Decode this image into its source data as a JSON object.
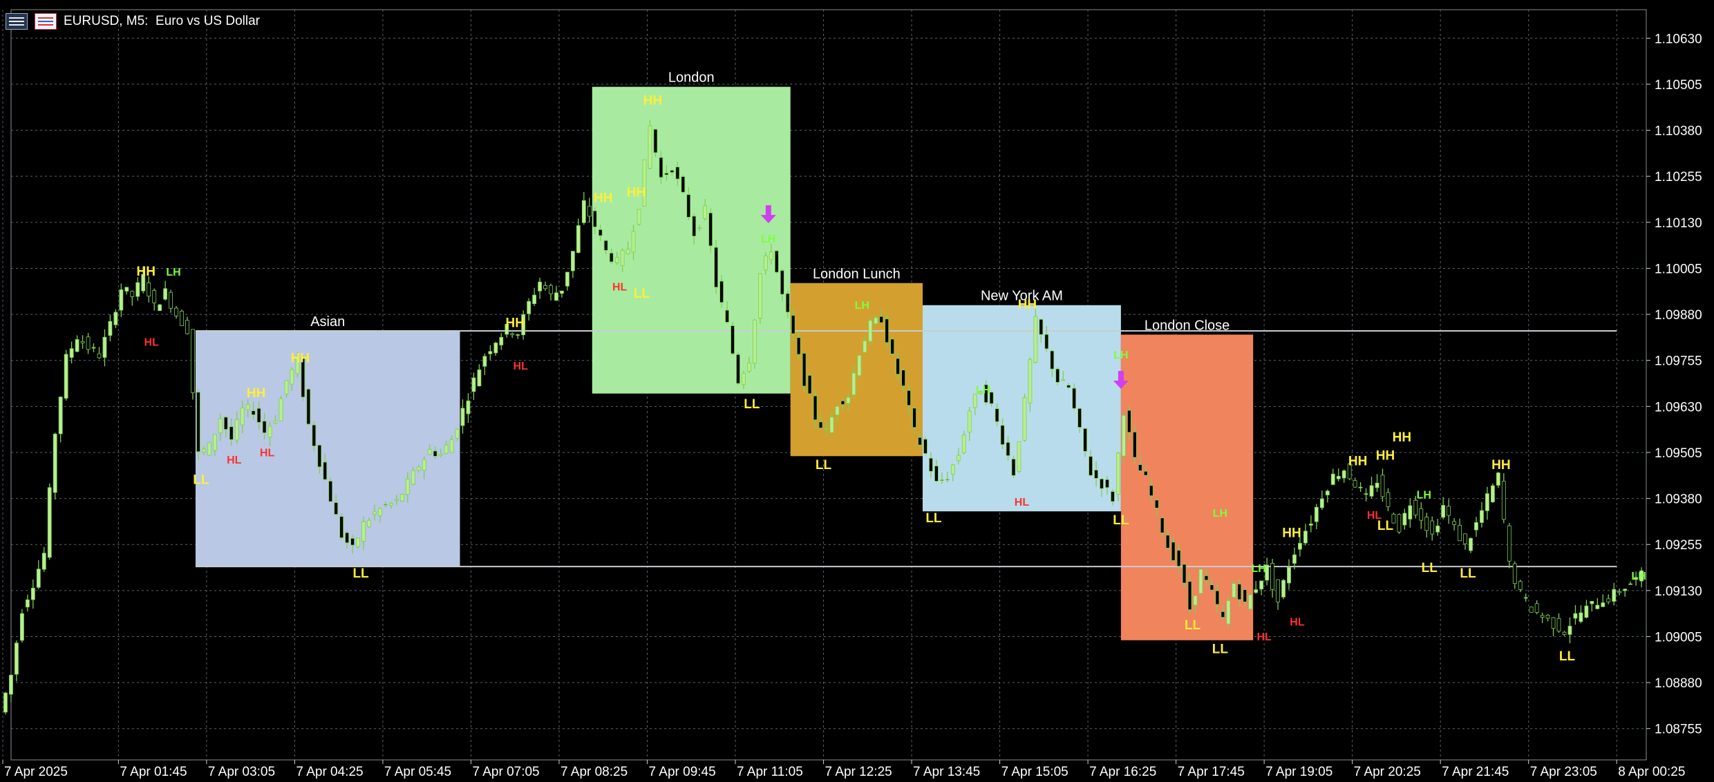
{
  "window": {
    "title": "EURUSD, M5:  Euro vs US Dollar",
    "icons": [
      "chart-list-icon",
      "trading-icon"
    ]
  },
  "chart_data": {
    "type": "candlestick",
    "symbol": "EURUSD",
    "timeframe": "M5",
    "ylim": [
      1.0867,
      1.107
    ],
    "y_ticks": [
      "1.10630",
      "1.10505",
      "1.10380",
      "1.10255",
      "1.10130",
      "1.10005",
      "1.09880",
      "1.09755",
      "1.09630",
      "1.09505",
      "1.09380",
      "1.09255",
      "1.09130",
      "1.09005",
      "1.08880",
      "1.08755"
    ],
    "x_start": "7 Apr 2025 00:00",
    "x_tick_labels": [
      "7 Apr 2025",
      "7 Apr 01:45",
      "7 Apr 03:05",
      "7 Apr 04:25",
      "7 Apr 05:45",
      "7 Apr 07:05",
      "7 Apr 08:25",
      "7 Apr 09:45",
      "7 Apr 11:05",
      "7 Apr 12:25",
      "7 Apr 13:45",
      "7 Apr 15:05",
      "7 Apr 16:25",
      "7 Apr 17:45",
      "7 Apr 19:05",
      "7 Apr 20:25",
      "7 Apr 21:45",
      "7 Apr 23:05",
      "8 Apr 00:25"
    ],
    "grid": true,
    "colors": {
      "background": "#000000",
      "grid": "#5a6470",
      "text": "#ffffff",
      "bull_candle": "#b7ef8f",
      "bear_candle": "#000000",
      "wick": "#7fcf52",
      "label_HH": "#ffef3a",
      "label_LL": "#ffef3a",
      "label_HL": "#ff3030",
      "label_LH": "#7dff3a",
      "arrow": "#d040f0"
    },
    "sessions": [
      {
        "name": "Asian",
        "start": "7 Apr 02:55",
        "end": "7 Apr 06:55",
        "high": 1.09835,
        "low": 1.09195,
        "color": "#b9c8e4"
      },
      {
        "name": "London",
        "start": "7 Apr 08:55",
        "end": "7 Apr 11:55",
        "high": 1.10498,
        "low": 1.09665,
        "color": "#a8eba0"
      },
      {
        "name": "London Lunch",
        "start": "7 Apr 11:55",
        "end": "7 Apr 13:55",
        "high": 1.09965,
        "low": 1.09495,
        "color": "#d3a030"
      },
      {
        "name": "New York AM",
        "start": "7 Apr 13:55",
        "end": "7 Apr 16:55",
        "high": 1.09905,
        "low": 1.09345,
        "color": "#b9dcec"
      },
      {
        "name": "London Close",
        "start": "7 Apr 16:55",
        "end": "7 Apr 18:55",
        "high": 1.09825,
        "low": 1.08995,
        "color": "#f0845c"
      }
    ],
    "horizontal_lines": [
      {
        "price": 1.09835,
        "from": "7 Apr 02:55",
        "to": "8 Apr 00:25"
      },
      {
        "price": 1.09195,
        "from": "7 Apr 02:55",
        "to": "8 Apr 00:25"
      }
    ],
    "arrows": [
      {
        "time": "7 Apr 11:35",
        "price": 1.1015,
        "direction": "down"
      },
      {
        "time": "7 Apr 16:55",
        "price": 1.097,
        "direction": "down"
      }
    ],
    "swing_labels": [
      {
        "text": "HH",
        "time": "7 Apr 02:10",
        "price": 1.1
      },
      {
        "text": "LH",
        "time": "7 Apr 02:35",
        "price": 1.1
      },
      {
        "text": "HL",
        "time": "7 Apr 02:15",
        "price": 1.0981
      },
      {
        "text": "HH",
        "time": "7 Apr 04:30",
        "price": 1.09765
      },
      {
        "text": "HH",
        "time": "7 Apr 03:50",
        "price": 1.0967
      },
      {
        "text": "HL",
        "time": "7 Apr 03:30",
        "price": 1.0949
      },
      {
        "text": "HL",
        "time": "7 Apr 04:00",
        "price": 1.0951
      },
      {
        "text": "LL",
        "time": "7 Apr 03:00",
        "price": 1.09435
      },
      {
        "text": "LL",
        "time": "7 Apr 05:25",
        "price": 1.0918
      },
      {
        "text": "HH",
        "time": "7 Apr 07:45",
        "price": 1.0986
      },
      {
        "text": "HL",
        "time": "7 Apr 07:50",
        "price": 1.09745
      },
      {
        "text": "HH",
        "time": "7 Apr 09:05",
        "price": 1.102
      },
      {
        "text": "HH",
        "time": "7 Apr 09:50",
        "price": 1.10465
      },
      {
        "text": "HH",
        "time": "7 Apr 09:35",
        "price": 1.10215
      },
      {
        "text": "HL",
        "time": "7 Apr 09:20",
        "price": 1.0996
      },
      {
        "text": "LL",
        "time": "7 Apr 09:40",
        "price": 1.0994
      },
      {
        "text": "LH",
        "time": "7 Apr 11:35",
        "price": 1.1009
      },
      {
        "text": "LL",
        "time": "7 Apr 11:20",
        "price": 1.0964
      },
      {
        "text": "LH",
        "time": "7 Apr 13:00",
        "price": 1.0991
      },
      {
        "text": "LL",
        "time": "7 Apr 12:25",
        "price": 1.09475
      },
      {
        "text": "LH",
        "time": "7 Apr 14:50",
        "price": 1.0968
      },
      {
        "text": "HH",
        "time": "7 Apr 15:30",
        "price": 1.0991
      },
      {
        "text": "LL",
        "time": "7 Apr 14:05",
        "price": 1.0933
      },
      {
        "text": "HL",
        "time": "7 Apr 15:25",
        "price": 1.09375
      },
      {
        "text": "LH",
        "time": "7 Apr 16:55",
        "price": 1.09775
      },
      {
        "text": "LL",
        "time": "7 Apr 16:55",
        "price": 1.09325
      },
      {
        "text": "LH",
        "time": "7 Apr 18:25",
        "price": 1.09345
      },
      {
        "text": "LH",
        "time": "7 Apr 19:00",
        "price": 1.09195
      },
      {
        "text": "LL",
        "time": "7 Apr 18:00",
        "price": 1.0904
      },
      {
        "text": "LL",
        "time": "7 Apr 18:25",
        "price": 1.08975
      },
      {
        "text": "HL",
        "time": "7 Apr 19:05",
        "price": 1.0901
      },
      {
        "text": "HH",
        "time": "7 Apr 19:30",
        "price": 1.0929
      },
      {
        "text": "HL",
        "time": "7 Apr 19:35",
        "price": 1.0905
      },
      {
        "text": "HH",
        "time": "7 Apr 20:30",
        "price": 1.09485
      },
      {
        "text": "HH",
        "time": "7 Apr 20:55",
        "price": 1.095
      },
      {
        "text": "HH",
        "time": "7 Apr 21:10",
        "price": 1.0955
      },
      {
        "text": "HL",
        "time": "7 Apr 20:45",
        "price": 1.0934
      },
      {
        "text": "LL",
        "time": "7 Apr 20:55",
        "price": 1.0931
      },
      {
        "text": "LH",
        "time": "7 Apr 21:30",
        "price": 1.09395
      },
      {
        "text": "LL",
        "time": "7 Apr 21:35",
        "price": 1.09195
      },
      {
        "text": "LL",
        "time": "7 Apr 22:10",
        "price": 1.0918
      },
      {
        "text": "HH",
        "time": "7 Apr 22:40",
        "price": 1.09475
      },
      {
        "text": "LL",
        "time": "7 Apr 23:40",
        "price": 1.08955
      },
      {
        "text": "LH",
        "time": "8 Apr 00:45",
        "price": 1.09175
      }
    ],
    "price_path": [
      [
        "7 Apr 00:00",
        1.088
      ],
      [
        "7 Apr 00:10",
        1.089
      ],
      [
        "7 Apr 00:20",
        1.0908
      ],
      [
        "7 Apr 00:30",
        1.0915
      ],
      [
        "7 Apr 00:40",
        1.0923
      ],
      [
        "7 Apr 00:50",
        1.0956
      ],
      [
        "7 Apr 01:00",
        1.0976
      ],
      [
        "7 Apr 01:10",
        1.0982
      ],
      [
        "7 Apr 01:20",
        1.0979
      ],
      [
        "7 Apr 01:30",
        1.0977
      ],
      [
        "7 Apr 01:40",
        1.0985
      ],
      [
        "7 Apr 01:50",
        1.0995
      ],
      [
        "7 Apr 02:00",
        1.0993
      ],
      [
        "7 Apr 02:10",
        1.0998
      ],
      [
        "7 Apr 02:20",
        1.099
      ],
      [
        "7 Apr 02:30",
        1.0994
      ],
      [
        "7 Apr 02:40",
        1.0988
      ],
      [
        "7 Apr 02:50",
        1.0984
      ],
      [
        "7 Apr 03:00",
        1.095
      ],
      [
        "7 Apr 03:10",
        1.0952
      ],
      [
        "7 Apr 03:20",
        1.096
      ],
      [
        "7 Apr 03:30",
        1.0954
      ],
      [
        "7 Apr 03:40",
        1.0962
      ],
      [
        "7 Apr 03:50",
        1.0962
      ],
      [
        "7 Apr 04:00",
        1.0956
      ],
      [
        "7 Apr 04:10",
        1.096
      ],
      [
        "7 Apr 04:20",
        1.097
      ],
      [
        "7 Apr 04:30",
        1.0975
      ],
      [
        "7 Apr 04:40",
        1.0958
      ],
      [
        "7 Apr 04:50",
        1.0948
      ],
      [
        "7 Apr 05:00",
        1.0938
      ],
      [
        "7 Apr 05:10",
        1.0928
      ],
      [
        "7 Apr 05:20",
        1.0924
      ],
      [
        "7 Apr 05:30",
        1.0931
      ],
      [
        "7 Apr 05:40",
        1.0934
      ],
      [
        "7 Apr 05:50",
        1.0936
      ],
      [
        "7 Apr 06:00",
        1.0937
      ],
      [
        "7 Apr 06:10",
        1.0942
      ],
      [
        "7 Apr 06:20",
        1.0947
      ],
      [
        "7 Apr 06:30",
        1.0951
      ],
      [
        "7 Apr 06:40",
        1.095
      ],
      [
        "7 Apr 06:50",
        1.0954
      ],
      [
        "7 Apr 07:00",
        1.0962
      ],
      [
        "7 Apr 07:10",
        1.097
      ],
      [
        "7 Apr 07:20",
        1.0977
      ],
      [
        "7 Apr 07:30",
        1.0981
      ],
      [
        "7 Apr 07:40",
        1.0984
      ],
      [
        "7 Apr 07:50",
        1.0983
      ],
      [
        "7 Apr 08:00",
        1.0991
      ],
      [
        "7 Apr 08:10",
        1.0997
      ],
      [
        "7 Apr 08:20",
        1.0993
      ],
      [
        "7 Apr 08:30",
        1.0995
      ],
      [
        "7 Apr 08:40",
        1.1005
      ],
      [
        "7 Apr 08:50",
        1.1018
      ],
      [
        "7 Apr 09:00",
        1.1012
      ],
      [
        "7 Apr 09:10",
        1.1005
      ],
      [
        "7 Apr 09:20",
        1.1002
      ],
      [
        "7 Apr 09:30",
        1.1006
      ],
      [
        "7 Apr 09:40",
        1.1018
      ],
      [
        "7 Apr 09:50",
        1.1039
      ],
      [
        "7 Apr 10:00",
        1.1025
      ],
      [
        "7 Apr 10:10",
        1.1028
      ],
      [
        "7 Apr 10:20",
        1.102
      ],
      [
        "7 Apr 10:30",
        1.101
      ],
      [
        "7 Apr 10:40",
        1.1016
      ],
      [
        "7 Apr 10:50",
        1.0996
      ],
      [
        "7 Apr 11:00",
        1.0985
      ],
      [
        "7 Apr 11:10",
        1.097
      ],
      [
        "7 Apr 11:20",
        1.0976
      ],
      [
        "7 Apr 11:30",
        1.0999
      ],
      [
        "7 Apr 11:40",
        1.1006
      ],
      [
        "7 Apr 11:50",
        1.0993
      ],
      [
        "7 Apr 12:00",
        1.0982
      ],
      [
        "7 Apr 12:10",
        1.097
      ],
      [
        "7 Apr 12:20",
        1.096
      ],
      [
        "7 Apr 12:30",
        1.0956
      ],
      [
        "7 Apr 12:40",
        1.0964
      ],
      [
        "7 Apr 12:50",
        1.0966
      ],
      [
        "7 Apr 13:00",
        1.0978
      ],
      [
        "7 Apr 13:10",
        1.0985
      ],
      [
        "7 Apr 13:20",
        1.0987
      ],
      [
        "7 Apr 13:30",
        1.0976
      ],
      [
        "7 Apr 13:40",
        1.0968
      ],
      [
        "7 Apr 13:50",
        1.0956
      ],
      [
        "7 Apr 14:00",
        1.095
      ],
      [
        "7 Apr 14:10",
        1.0942
      ],
      [
        "7 Apr 14:20",
        1.0944
      ],
      [
        "7 Apr 14:30",
        1.095
      ],
      [
        "7 Apr 14:40",
        1.0962
      ],
      [
        "7 Apr 14:50",
        1.0968
      ],
      [
        "7 Apr 15:00",
        1.0963
      ],
      [
        "7 Apr 15:10",
        1.0954
      ],
      [
        "7 Apr 15:20",
        1.0945
      ],
      [
        "7 Apr 15:30",
        1.0964
      ],
      [
        "7 Apr 15:40",
        1.0986
      ],
      [
        "7 Apr 15:50",
        1.0978
      ],
      [
        "7 Apr 16:00",
        1.097
      ],
      [
        "7 Apr 16:10",
        1.0968
      ],
      [
        "7 Apr 16:20",
        1.0956
      ],
      [
        "7 Apr 16:30",
        1.0945
      ],
      [
        "7 Apr 16:40",
        1.0942
      ],
      [
        "7 Apr 16:50",
        1.0938
      ],
      [
        "7 Apr 17:00",
        1.0962
      ],
      [
        "7 Apr 17:10",
        1.0948
      ],
      [
        "7 Apr 17:20",
        1.0943
      ],
      [
        "7 Apr 17:30",
        1.0934
      ],
      [
        "7 Apr 17:40",
        1.0925
      ],
      [
        "7 Apr 17:50",
        1.092
      ],
      [
        "7 Apr 18:00",
        1.0908
      ],
      [
        "7 Apr 18:10",
        1.0918
      ],
      [
        "7 Apr 18:20",
        1.0912
      ],
      [
        "7 Apr 18:30",
        1.0905
      ],
      [
        "7 Apr 18:40",
        1.0915
      ],
      [
        "7 Apr 18:50",
        1.0909
      ],
      [
        "7 Apr 19:00",
        1.0914
      ],
      [
        "7 Apr 19:10",
        1.0919
      ],
      [
        "7 Apr 19:20",
        1.091
      ],
      [
        "7 Apr 19:30",
        1.092
      ],
      [
        "7 Apr 19:40",
        1.0927
      ],
      [
        "7 Apr 19:50",
        1.0932
      ],
      [
        "7 Apr 20:00",
        1.0939
      ],
      [
        "7 Apr 20:10",
        1.0944
      ],
      [
        "7 Apr 20:20",
        1.0946
      ],
      [
        "7 Apr 20:30",
        1.0942
      ],
      [
        "7 Apr 20:40",
        1.0938
      ],
      [
        "7 Apr 20:50",
        1.0943
      ],
      [
        "7 Apr 21:00",
        1.0935
      ],
      [
        "7 Apr 21:10",
        1.093
      ],
      [
        "7 Apr 21:20",
        1.0937
      ],
      [
        "7 Apr 21:30",
        1.0933
      ],
      [
        "7 Apr 21:40",
        1.0928
      ],
      [
        "7 Apr 21:50",
        1.0936
      ],
      [
        "7 Apr 22:00",
        1.093
      ],
      [
        "7 Apr 22:10",
        1.0925
      ],
      [
        "7 Apr 22:20",
        1.0931
      ],
      [
        "7 Apr 22:30",
        1.0938
      ],
      [
        "7 Apr 22:40",
        1.0944
      ],
      [
        "7 Apr 22:50",
        1.092
      ],
      [
        "7 Apr 23:00",
        1.0912
      ],
      [
        "7 Apr 23:10",
        1.0908
      ],
      [
        "7 Apr 23:20",
        1.0906
      ],
      [
        "7 Apr 23:30",
        1.0904
      ],
      [
        "7 Apr 23:40",
        1.0902
      ],
      [
        "7 Apr 23:50",
        1.0906
      ],
      [
        "8 Apr 00:00",
        1.0908
      ],
      [
        "8 Apr 00:10",
        1.091
      ],
      [
        "8 Apr 00:20",
        1.0911
      ],
      [
        "8 Apr 00:30",
        1.0913
      ],
      [
        "8 Apr 00:40",
        1.0915
      ],
      [
        "8 Apr 00:50",
        1.0917
      ]
    ]
  }
}
